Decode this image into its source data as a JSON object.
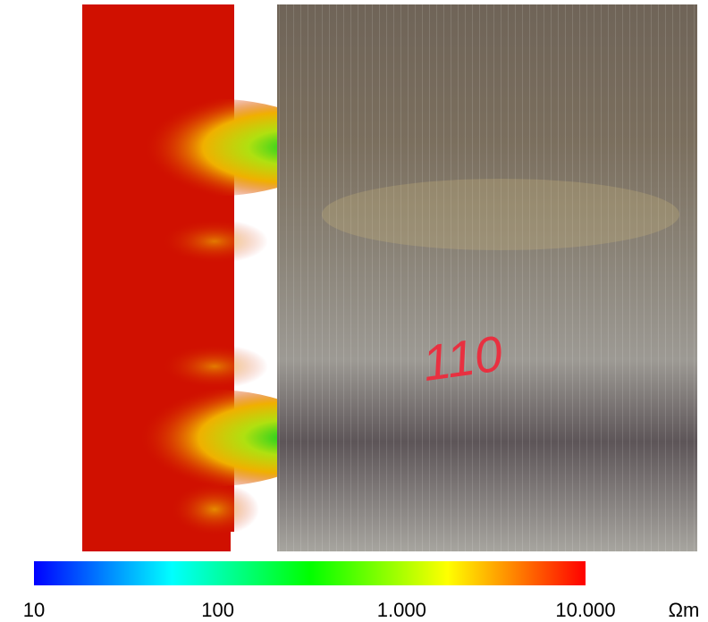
{
  "photo": {
    "marking": "110"
  },
  "colorbar": {
    "lim": [
      10,
      10000
    ],
    "log": true,
    "ticks": [
      10,
      100,
      {
        "value": 1000,
        "label": "1.000"
      },
      {
        "value": 10000,
        "label": "10.000"
      }
    ],
    "unit": "Ωm"
  }
}
